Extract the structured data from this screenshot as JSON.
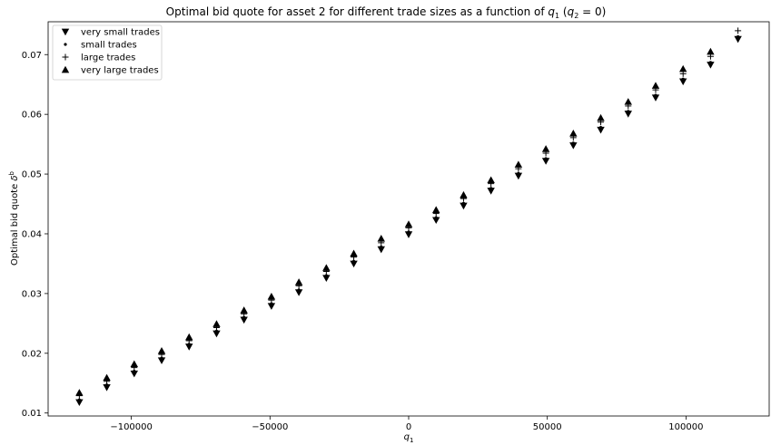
{
  "chart_data": {
    "type": "scatter",
    "title": {
      "prefix": "Optimal bid quote for asset 2 for different trade sizes as a function of ",
      "q1": "q",
      "q1_sub": "1",
      "paren_open": " (",
      "q2": "q",
      "q2_sub": "2",
      "eq": " = 0)"
    },
    "xlabel": {
      "var": "q",
      "sub": "1"
    },
    "ylabel": {
      "text": "Optimal bid quote ",
      "var": "δ",
      "sup": "b"
    },
    "xlim": [
      -130000,
      130000
    ],
    "ylim": [
      0.0095,
      0.0755
    ],
    "x_ticks": [
      {
        "value": -100000,
        "label": "−100000"
      },
      {
        "value": -50000,
        "label": "−50000"
      },
      {
        "value": 0,
        "label": "0"
      },
      {
        "value": 50000,
        "label": "50000"
      },
      {
        "value": 100000,
        "label": "100000"
      }
    ],
    "y_ticks": [
      {
        "value": 0.01,
        "label": "0.01"
      },
      {
        "value": 0.02,
        "label": "0.02"
      },
      {
        "value": 0.03,
        "label": "0.03"
      },
      {
        "value": 0.04,
        "label": "0.04"
      },
      {
        "value": 0.05,
        "label": "0.05"
      },
      {
        "value": 0.06,
        "label": "0.06"
      },
      {
        "value": 0.07,
        "label": "0.07"
      }
    ],
    "grid": false,
    "legend_position": "top-left",
    "x": [
      -118750,
      -108854,
      -98958,
      -89063,
      -79167,
      -69271,
      -59375,
      -49479,
      -39583,
      -29688,
      -19792,
      -9896,
      0,
      9896,
      19792,
      29688,
      39583,
      49479,
      59375,
      69271,
      79167,
      89063,
      98958,
      108854,
      118750
    ],
    "series": [
      {
        "name": "very small trades",
        "marker": "triangle-down",
        "values": [
          0.0118,
          0.0143,
          0.0166,
          0.0188,
          0.0211,
          0.0233,
          0.0256,
          0.0279,
          0.0302,
          0.0326,
          0.035,
          0.0374,
          0.0399,
          0.0423,
          0.0447,
          0.0472,
          0.0497,
          0.0522,
          0.0548,
          0.0574,
          0.0601,
          0.0628,
          0.0655,
          0.0683,
          0.0726
        ]
      },
      {
        "name": "small trades",
        "marker": "dot",
        "values": [
          0.0122,
          0.0147,
          0.017,
          0.0192,
          0.0215,
          0.0237,
          0.026,
          0.0283,
          0.0306,
          0.033,
          0.0354,
          0.0378,
          0.0403,
          0.0427,
          0.0451,
          0.0476,
          0.0501,
          0.0526,
          0.0552,
          0.0578,
          0.0605,
          0.0632,
          0.0659,
          0.0687,
          0.073
        ]
      },
      {
        "name": "large trades",
        "marker": "plus",
        "values": [
          0.0129,
          0.0153,
          0.0176,
          0.0198,
          0.0221,
          0.0243,
          0.0266,
          0.0289,
          0.0313,
          0.0337,
          0.0361,
          0.0385,
          0.041,
          0.0434,
          0.0459,
          0.0484,
          0.0509,
          0.0535,
          0.0561,
          0.0587,
          0.0614,
          0.0641,
          0.0668,
          0.0697,
          0.074
        ]
      },
      {
        "name": "very large trades",
        "marker": "triangle-up",
        "values": [
          0.0134,
          0.0159,
          0.0182,
          0.0204,
          0.0227,
          0.0249,
          0.0272,
          0.0295,
          0.0319,
          0.0343,
          0.0367,
          0.0392,
          0.0416,
          0.044,
          0.0465,
          0.049,
          0.0516,
          0.0542,
          0.0568,
          0.0594,
          0.0621,
          0.0648,
          0.0676,
          0.0705,
          null
        ]
      }
    ]
  }
}
